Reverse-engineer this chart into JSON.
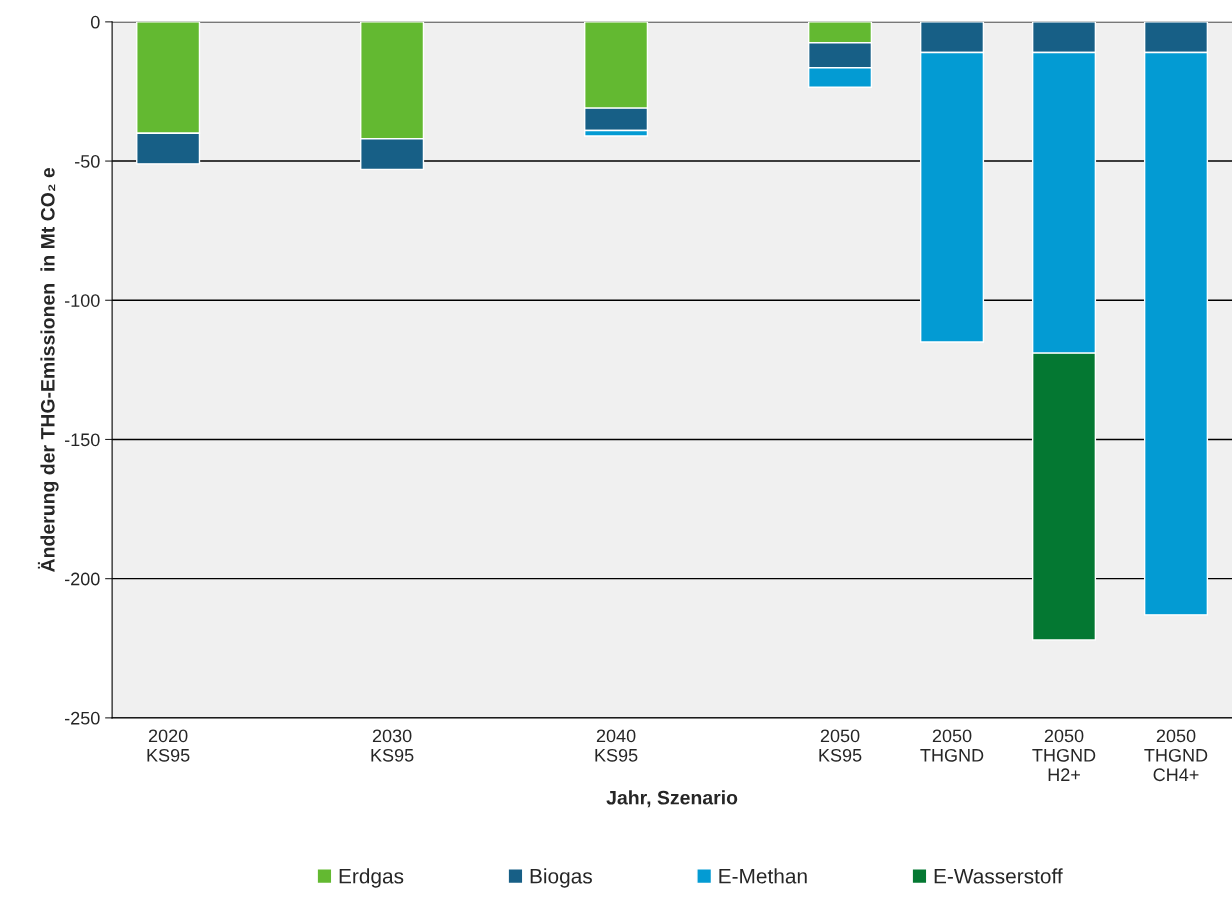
{
  "chart_data": {
    "type": "bar",
    "stacked": true,
    "xlabel": "Jahr, Szenario",
    "ylabel": "Änderung der THG-Emissionen  in Mt CO₂ e",
    "categories": [
      "2020\nKS95",
      null,
      "2030\nKS95",
      null,
      "2040\nKS95",
      null,
      "2050\nKS95",
      "2050\nTHGND",
      "2050\nTHGND\nH2+",
      "2050\nTHGND\nCH4+"
    ],
    "series": [
      {
        "name": "Erdgas",
        "color": "#63b931",
        "values": [
          -40,
          null,
          -42,
          null,
          -31,
          null,
          -7.5,
          null,
          null,
          null
        ]
      },
      {
        "name": "Biogas",
        "color": "#175f86",
        "values": [
          -11,
          null,
          -11,
          null,
          -8,
          null,
          -9,
          -11,
          -11,
          -11
        ]
      },
      {
        "name": "E-Methan",
        "color": "#039bd3",
        "values": [
          null,
          null,
          null,
          null,
          -2,
          null,
          -7,
          -104,
          -108,
          -202
        ]
      },
      {
        "name": "E-Wasserstoff",
        "color": "#047832",
        "values": [
          null,
          null,
          null,
          null,
          null,
          null,
          null,
          null,
          -103,
          null
        ]
      }
    ],
    "ylim": [
      -250,
      0
    ],
    "yticks": [
      -250,
      -200,
      -150,
      -100,
      -50,
      0
    ],
    "grid": "y",
    "legend": "bottom"
  }
}
